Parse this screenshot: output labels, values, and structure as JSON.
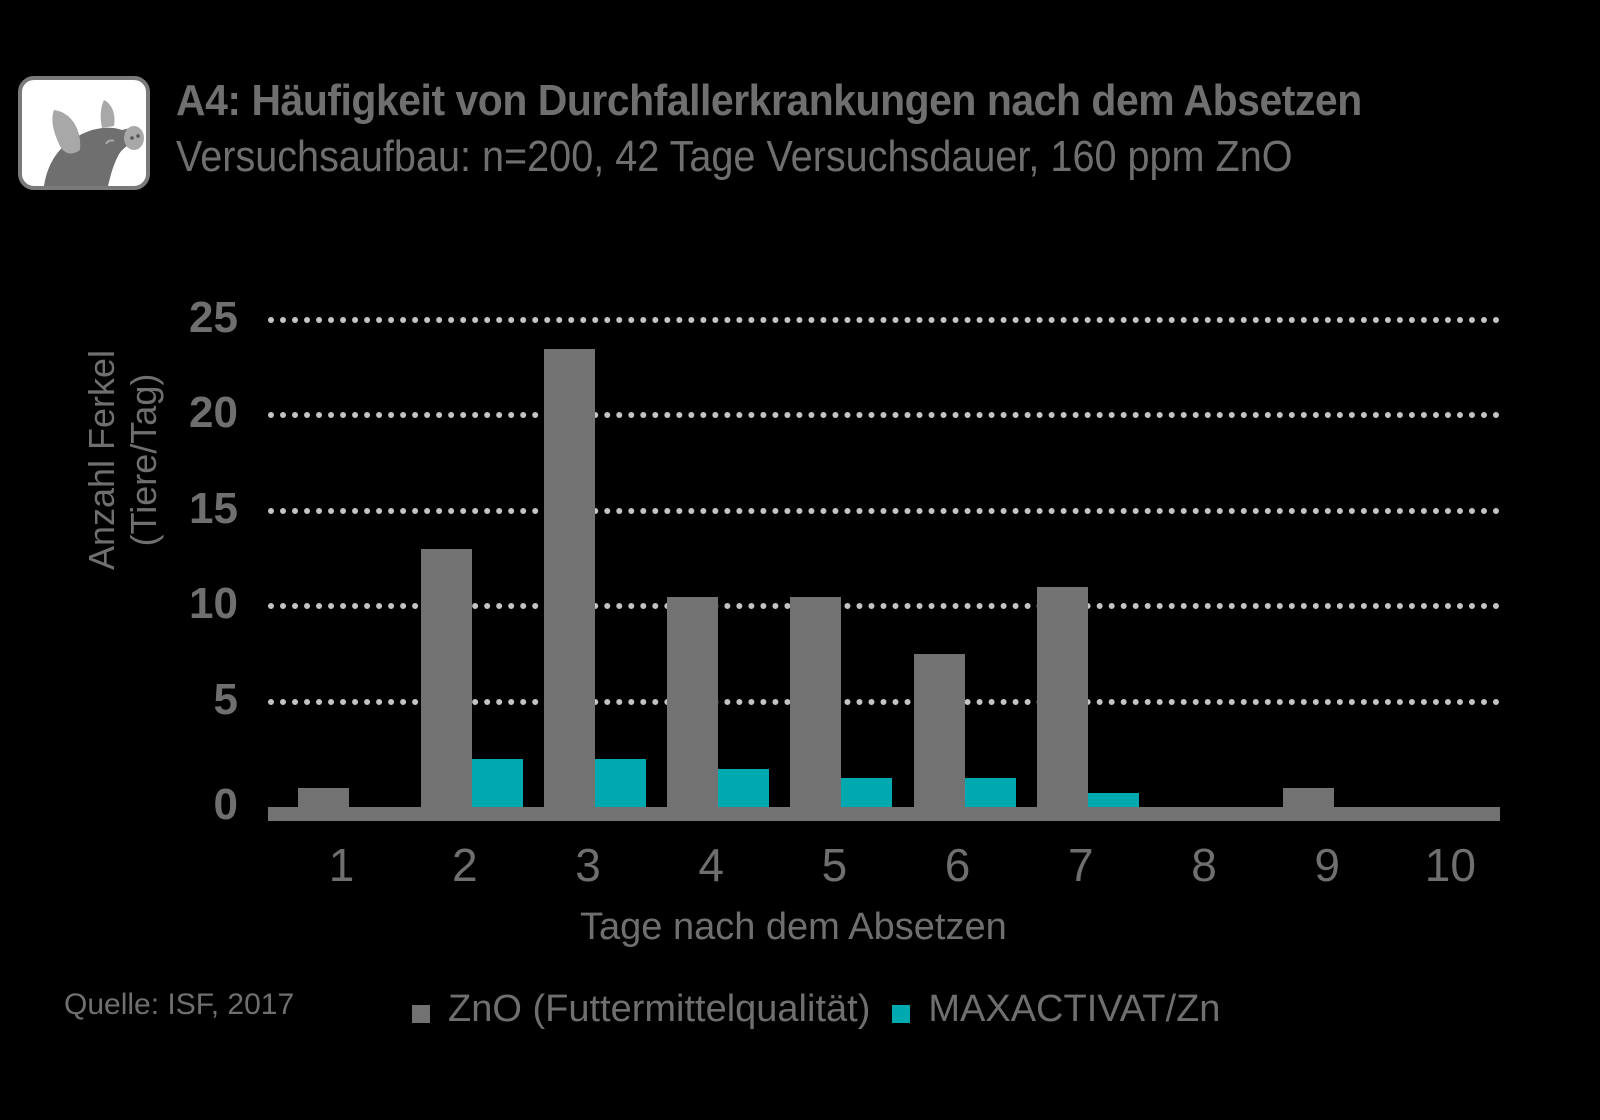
{
  "header": {
    "icon": "pig-icon",
    "title": "A4: Häufigkeit von Durchfallerkrankungen nach dem Absetzen",
    "subtitle": "Versuchsaufbau: n=200, 42 Tage Versuchsdauer, 160 ppm ZnO"
  },
  "footer": {
    "source": "Quelle: ISF, 2017"
  },
  "colors": {
    "zno": "#727272",
    "maxactivat": "#00a9b0",
    "grid": "#c4c4c4",
    "text": "#6f6f6f",
    "background": "#000000"
  },
  "chart_data": {
    "type": "bar",
    "title": "A4: Häufigkeit von Durchfallerkrankungen nach dem Absetzen",
    "subtitle": "Versuchsaufbau: n=200, 42 Tage Versuchsdauer, 160 ppm ZnO",
    "xlabel": "Tage nach dem Absetzen",
    "ylabel": "Anzahl Ferkel (Tiere/Tag)",
    "ylabel_lines": [
      "Anzahl Ferkel",
      "(Tiere/Tag)"
    ],
    "categories": [
      "1",
      "2",
      "3",
      "4",
      "5",
      "6",
      "7",
      "8",
      "9",
      "10"
    ],
    "series": [
      {
        "name": "ZnO (Futtermittelqualität)",
        "color": "#727272",
        "values": [
          1,
          13.5,
          24,
          11,
          11,
          8,
          11.5,
          0,
          1,
          0
        ]
      },
      {
        "name": "MAXACTIVAT/Zn",
        "color": "#00a9b0",
        "values": [
          0,
          2.5,
          2.5,
          2,
          1.5,
          1.5,
          0.75,
          0,
          0,
          0
        ]
      }
    ],
    "yticks": [
      "0",
      "5",
      "10",
      "15",
      "20",
      "25"
    ],
    "ylim": [
      0,
      25
    ],
    "grid": true,
    "grid_style": "dotted",
    "legend_position": "bottom",
    "source": "Quelle: ISF, 2017"
  }
}
